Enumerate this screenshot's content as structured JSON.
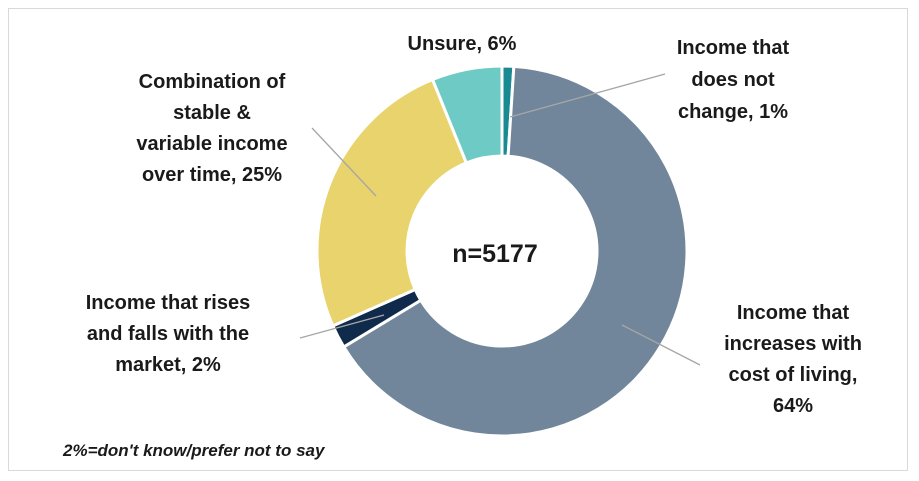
{
  "chart_data": {
    "type": "pie",
    "donut": true,
    "center_label": "n=5177",
    "slices": [
      {
        "label": "Income that does not change, 1%",
        "value": 1,
        "color": "#1a8a92"
      },
      {
        "label": "Income that increases with cost of living, 64%",
        "value": 64,
        "color": "#71869b"
      },
      {
        "label": "Income that rises and falls with the market, 2%",
        "value": 2,
        "color": "#0f2a4a"
      },
      {
        "label": "Combination of stable & variable income over time, 25%",
        "value": 25,
        "color": "#e8d36c"
      },
      {
        "label": "Unsure, 6%",
        "value": 6,
        "color": "#6ecac4"
      }
    ],
    "label_lines": [
      [
        "Income that",
        "does not",
        "change, 1%"
      ],
      [
        "Income that",
        "increases with",
        "cost of living,",
        "64%"
      ],
      [
        "Income that rises",
        "and falls with the",
        "market, 2%"
      ],
      [
        "Combination of",
        "stable &",
        "variable income",
        "over time, 25%"
      ],
      [
        "Unsure, 6%"
      ]
    ],
    "note": "2%=don't know/prefer not to say"
  }
}
